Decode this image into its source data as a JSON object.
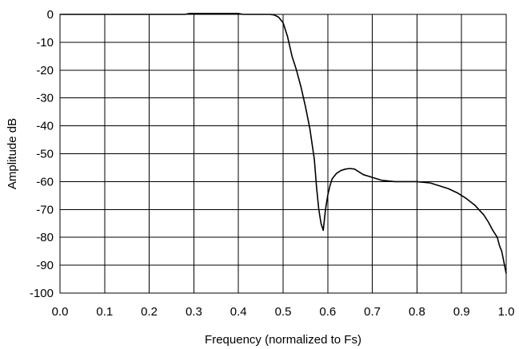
{
  "chart_data": {
    "type": "line",
    "title": "",
    "xlabel": "Frequency (normalized to Fs)",
    "ylabel": "Amplitude dB",
    "xlim": [
      0.0,
      1.0
    ],
    "ylim": [
      -100,
      0
    ],
    "x_ticks": [
      "0.0",
      "0.1",
      "0.2",
      "0.3",
      "0.4",
      "0.5",
      "0.6",
      "0.7",
      "0.8",
      "0.9",
      "1.0"
    ],
    "y_ticks": [
      "0",
      "-10",
      "-20",
      "-30",
      "-40",
      "-50",
      "-60",
      "-70",
      "-80",
      "-90",
      "-100"
    ],
    "grid": true,
    "legend": "none",
    "series": [
      {
        "x": [
          0.0,
          0.1,
          0.2,
          0.28,
          0.29,
          0.35,
          0.4,
          0.41,
          0.45,
          0.47,
          0.48,
          0.49,
          0.5,
          0.51,
          0.52,
          0.53,
          0.54,
          0.55,
          0.56,
          0.57,
          0.575,
          0.58,
          0.585,
          0.59,
          0.595,
          0.6,
          0.605,
          0.61,
          0.62,
          0.63,
          0.64,
          0.65,
          0.66,
          0.67,
          0.68,
          0.7,
          0.72,
          0.75,
          0.8,
          0.83,
          0.85,
          0.87,
          0.89,
          0.91,
          0.93,
          0.95,
          0.96,
          0.97,
          0.98,
          0.985,
          0.99,
          0.995,
          1.0
        ],
        "y": [
          0,
          0,
          0,
          0,
          0.3,
          0.3,
          0.3,
          0,
          0,
          0,
          -0.2,
          -1,
          -3,
          -8,
          -15,
          -20,
          -26,
          -33,
          -41,
          -52,
          -62,
          -70,
          -75,
          -77.5,
          -70,
          -65,
          -61.5,
          -59,
          -57,
          -56,
          -55.5,
          -55.3,
          -55.5,
          -56.5,
          -57.5,
          -58.5,
          -59.5,
          -60,
          -60,
          -60.5,
          -61.5,
          -62.5,
          -64,
          -66,
          -68.5,
          -72,
          -74.5,
          -77.5,
          -80,
          -83,
          -85,
          -89,
          -93
        ]
      }
    ]
  }
}
